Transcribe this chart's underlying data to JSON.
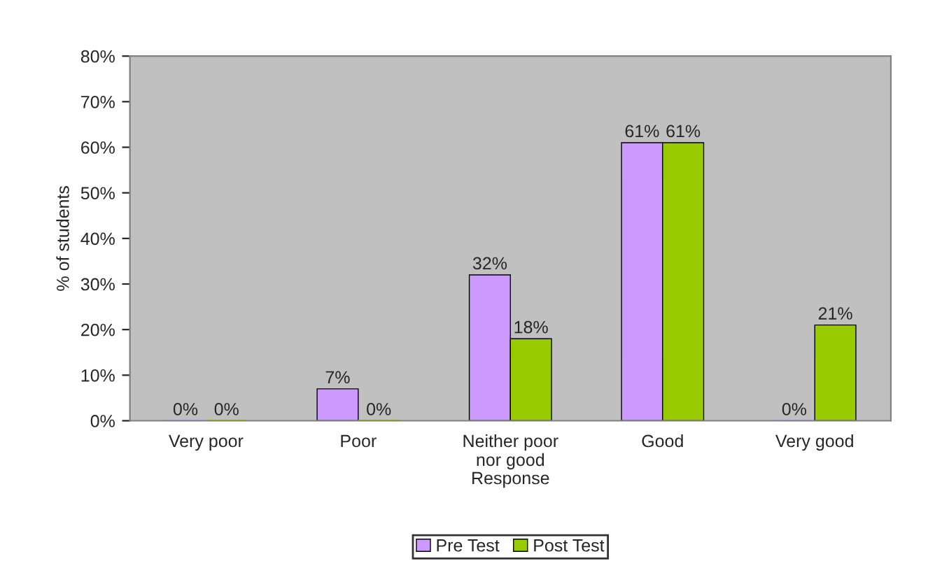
{
  "chart_data": {
    "type": "bar",
    "xlabel": "Response",
    "ylabel": "% of students",
    "categories": [
      "Very poor",
      "Poor",
      "Neither poor\nnor good",
      "Good",
      "Very good"
    ],
    "series": [
      {
        "name": "Pre Test",
        "color": "#cc99ff",
        "values": [
          0,
          7,
          32,
          61,
          0
        ],
        "value_labels": [
          "0%",
          "7%",
          "32%",
          "61%",
          "0%"
        ]
      },
      {
        "name": "Post Test",
        "color": "#99cc00",
        "values": [
          0,
          0,
          18,
          61,
          21
        ],
        "value_labels": [
          "0%",
          "0%",
          "18%",
          "61%",
          "21%"
        ]
      }
    ],
    "ylim": [
      0,
      80
    ],
    "yticks": [
      {
        "value": 0,
        "label": "0%"
      },
      {
        "value": 10,
        "label": "10%"
      },
      {
        "value": 20,
        "label": "20%"
      },
      {
        "value": 30,
        "label": "30%"
      },
      {
        "value": 40,
        "label": "40%"
      },
      {
        "value": 50,
        "label": "50%"
      },
      {
        "value": 60,
        "label": "60%"
      },
      {
        "value": 70,
        "label": "70%"
      },
      {
        "value": 80,
        "label": "80%"
      }
    ],
    "legend": "bottom"
  }
}
